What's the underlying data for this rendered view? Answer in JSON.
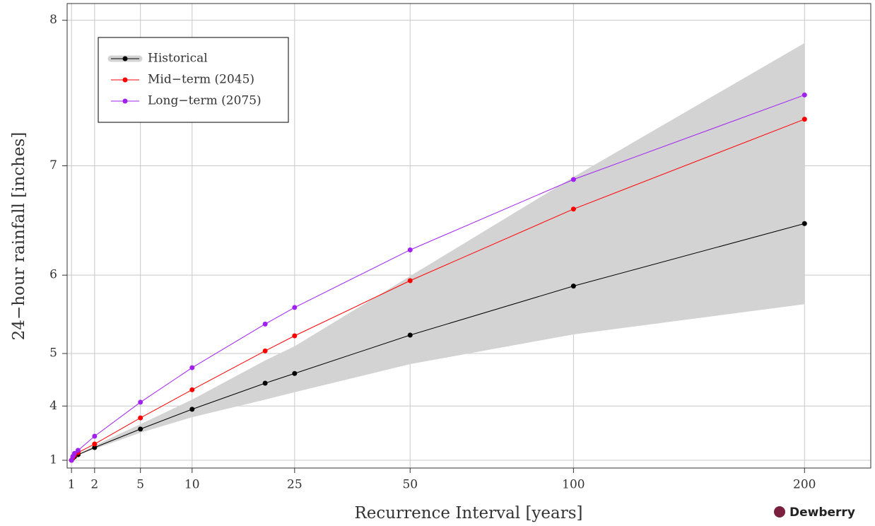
{
  "chart_data": {
    "type": "line",
    "x_label": "Recurrence Interval [years]",
    "y_label": "24−hour rainfall [inches]",
    "x": [
      1,
      1.05,
      1.11,
      1.25,
      2,
      5,
      10,
      20,
      25,
      50,
      100,
      200
    ],
    "xscale": "sqrt",
    "yscale": "cube",
    "xlim": [
      0.85,
      235
    ],
    "ylim": [
      -2,
      8.1
    ],
    "xticks": [
      1,
      2,
      5,
      10,
      25,
      50,
      100,
      200
    ],
    "yticks": [
      1,
      4,
      5,
      6,
      7,
      8
    ],
    "grid": true,
    "band": {
      "color": "#d3d3d3",
      "lower": [
        1,
        1.5,
        1.7,
        1.93,
        2.42,
        3.21,
        3.71,
        4.15,
        4.31,
        4.83,
        5.28,
        5.67
      ],
      "upper": [
        1,
        1.52,
        1.74,
        1.99,
        2.63,
        3.5,
        4.15,
        4.89,
        5.11,
        5.99,
        6.91,
        7.86
      ]
    },
    "series": [
      {
        "name": "Historical",
        "color": "#000000",
        "values": [
          1,
          1.51,
          1.72,
          1.96,
          2.51,
          3.34,
          3.92,
          4.49,
          4.67,
          5.27,
          5.88,
          6.51
        ]
      },
      {
        "name": "Mid−term (2045)",
        "color": "#ff0000",
        "values": [
          1,
          1.6,
          1.89,
          2.15,
          2.71,
          3.69,
          4.36,
          5.04,
          5.26,
          5.94,
          6.64,
          7.35
        ]
      },
      {
        "name": "Long−term (2075)",
        "color": "#a020f0",
        "values": [
          1,
          1.76,
          2.08,
          2.32,
          3.07,
          4.09,
          4.77,
          5.42,
          5.63,
          6.26,
          6.89,
          7.52
        ]
      }
    ],
    "legend": "top-left",
    "brand": "Dewberry"
  }
}
